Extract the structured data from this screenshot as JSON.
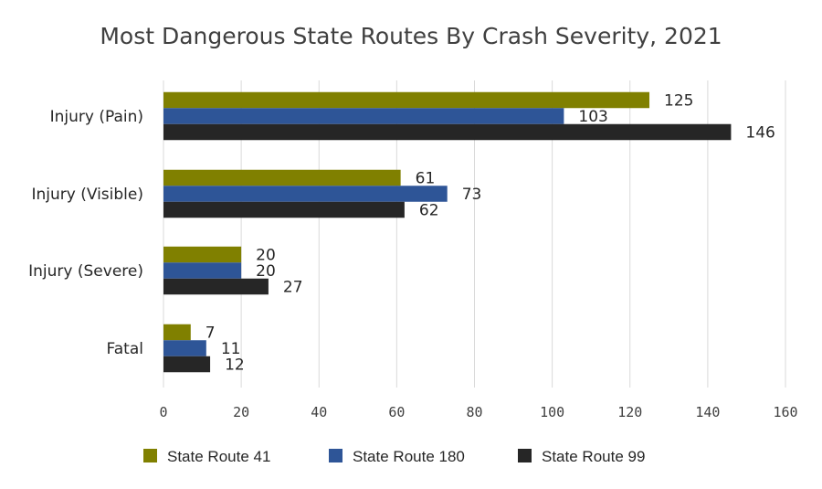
{
  "chart_data": {
    "type": "bar",
    "orientation": "horizontal",
    "title": "Most Dangerous State Routes By Crash Severity, 2021",
    "categories": [
      "Injury (Pain)",
      "Injury (Visible)",
      "Injury (Severe)",
      "Fatal"
    ],
    "series": [
      {
        "name": "State Route 41",
        "values": [
          125,
          61,
          20,
          7
        ],
        "color": "#808000"
      },
      {
        "name": "State Route 180",
        "values": [
          103,
          73,
          20,
          11
        ],
        "color": "#2e5597"
      },
      {
        "name": "State Route 99",
        "values": [
          146,
          62,
          27,
          12
        ],
        "color": "#262626"
      }
    ],
    "xlim": [
      0,
      160
    ],
    "x_ticks": [
      0,
      20,
      40,
      60,
      80,
      100,
      120,
      140,
      160
    ],
    "grid": "vertical",
    "legend_position": "bottom",
    "data_labels": true
  }
}
